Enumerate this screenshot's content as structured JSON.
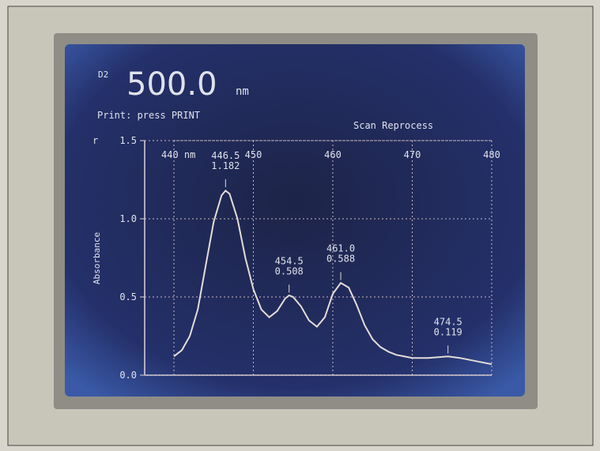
{
  "header": {
    "lamp": "D2",
    "wavelength": "500.0",
    "unit": "nm",
    "prompt": "Print: press PRINT",
    "menu": "Scan Reprocess",
    "corner": "r"
  },
  "chart_data": {
    "type": "line",
    "y_label": "Absorbance",
    "color": "#e4dcd8",
    "grid": true,
    "x": [
      440,
      441,
      442,
      443,
      444,
      445,
      446,
      446.5,
      447,
      448,
      449,
      450,
      451,
      452,
      453,
      454,
      454.5,
      455,
      456,
      457,
      458,
      459,
      460,
      461,
      462,
      463,
      464,
      465,
      466,
      467,
      468,
      470,
      472,
      474.5,
      476,
      478,
      480
    ],
    "values": [
      0.12,
      0.16,
      0.25,
      0.42,
      0.7,
      0.98,
      1.15,
      1.18,
      1.16,
      1.0,
      0.75,
      0.55,
      0.42,
      0.37,
      0.41,
      0.49,
      0.51,
      0.5,
      0.44,
      0.35,
      0.31,
      0.37,
      0.52,
      0.59,
      0.56,
      0.45,
      0.32,
      0.23,
      0.18,
      0.15,
      0.13,
      0.11,
      0.11,
      0.12,
      0.11,
      0.09,
      0.07
    ],
    "xlim": [
      440,
      480
    ],
    "ylim": [
      0,
      1.5
    ],
    "xticks": [
      {
        "value": 440,
        "label": "440 nm"
      },
      450,
      460,
      470,
      480
    ],
    "yticks": [
      {
        "value": 0,
        "label": "0.0"
      },
      {
        "value": 0.5,
        "label": "0.5"
      },
      {
        "value": 1,
        "label": "1.0"
      },
      {
        "value": 1.5,
        "label": "1.5"
      }
    ],
    "annotations": [
      {
        "x": 446.5,
        "y": 1.182,
        "labels": [
          "446.5",
          "1.182"
        ]
      },
      {
        "x": 454.5,
        "y": 0.508,
        "labels": [
          "454.5",
          "0.508"
        ]
      },
      {
        "x": 461,
        "y": 0.588,
        "labels": [
          "461.0",
          "0.588"
        ]
      },
      {
        "x": 474.5,
        "y": 0.119,
        "labels": [
          "474.5",
          "0.119"
        ]
      }
    ]
  }
}
